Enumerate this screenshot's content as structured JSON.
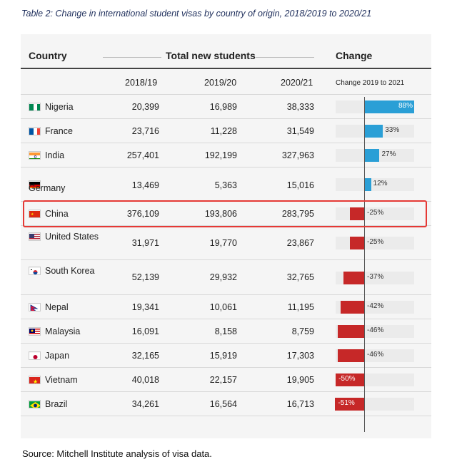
{
  "caption": "Table 2: Change in international student visas by country of origin, 2018/2019 to 2020/21",
  "source": "Source: Mitchell Institute analysis of visa data.",
  "headers": {
    "country": "Country",
    "total": "Total new students",
    "change": "Change",
    "y1": "2018/19",
    "y2": "2019/20",
    "y3": "2020/21",
    "change_sub": "Change 2019 to 2021"
  },
  "colors": {
    "positive": "#2a9fd6",
    "negative": "#c62828",
    "highlight": "#e53935"
  },
  "highlighted_country": "China",
  "rows": [
    {
      "country": "Nigeria",
      "flag": "nigeria-flag-icon",
      "v1": "20,399",
      "v2": "16,989",
      "v3": "38,333",
      "change": 88,
      "change_label": "88%"
    },
    {
      "country": "France",
      "flag": "france-flag-icon",
      "v1": "23,716",
      "v2": "11,228",
      "v3": "31,549",
      "change": 33,
      "change_label": "33%"
    },
    {
      "country": "India",
      "flag": "india-flag-icon",
      "v1": "257,401",
      "v2": "192,199",
      "v3": "327,963",
      "change": 27,
      "change_label": "27%"
    },
    {
      "country": "Germany",
      "flag": "germany-flag-icon",
      "v1": "13,469",
      "v2": "5,363",
      "v3": "15,016",
      "change": 12,
      "change_label": "12%"
    },
    {
      "country": "China",
      "flag": "china-flag-icon",
      "v1": "376,109",
      "v2": "193,806",
      "v3": "283,795",
      "change": -25,
      "change_label": "-25%"
    },
    {
      "country": "United States",
      "flag": "usa-flag-icon",
      "v1": "31,971",
      "v2": "19,770",
      "v3": "23,867",
      "change": -25,
      "change_label": "-25%"
    },
    {
      "country": "South Korea",
      "flag": "south-korea-flag-icon",
      "v1": "52,139",
      "v2": "29,932",
      "v3": "32,765",
      "change": -37,
      "change_label": "-37%"
    },
    {
      "country": "Nepal",
      "flag": "nepal-flag-icon",
      "v1": "19,341",
      "v2": "10,061",
      "v3": "11,195",
      "change": -42,
      "change_label": "-42%"
    },
    {
      "country": "Malaysia",
      "flag": "malaysia-flag-icon",
      "v1": "16,091",
      "v2": "8,158",
      "v3": "8,759",
      "change": -46,
      "change_label": "-46%"
    },
    {
      "country": "Japan",
      "flag": "japan-flag-icon",
      "v1": "32,165",
      "v2": "15,919",
      "v3": "17,303",
      "change": -46,
      "change_label": "-46%"
    },
    {
      "country": "Vietnam",
      "flag": "vietnam-flag-icon",
      "v1": "40,018",
      "v2": "22,157",
      "v3": "19,905",
      "change": -50,
      "change_label": "-50%"
    },
    {
      "country": "Brazil",
      "flag": "brazil-flag-icon",
      "v1": "34,261",
      "v2": "16,564",
      "v3": "16,713",
      "change": -51,
      "change_label": "-51%"
    }
  ],
  "chart_data": {
    "type": "table",
    "title": "Table 2: Change in international student visas by country of origin, 2018/2019 to 2020/21",
    "columns": [
      "Country",
      "2018/19",
      "2019/20",
      "2020/21",
      "Change 2019 to 2021"
    ],
    "categories": [
      "Nigeria",
      "France",
      "India",
      "Germany",
      "China",
      "United States",
      "South Korea",
      "Nepal",
      "Malaysia",
      "Japan",
      "Vietnam",
      "Brazil"
    ],
    "series": [
      {
        "name": "2018/19",
        "values": [
          20399,
          23716,
          257401,
          13469,
          376109,
          31971,
          52139,
          19341,
          16091,
          32165,
          40018,
          34261
        ]
      },
      {
        "name": "2019/20",
        "values": [
          16989,
          11228,
          192199,
          5363,
          193806,
          19770,
          29932,
          10061,
          8158,
          15919,
          22157,
          16564
        ]
      },
      {
        "name": "2020/21",
        "values": [
          38333,
          31549,
          327963,
          15016,
          283795,
          23867,
          32765,
          11195,
          8759,
          17303,
          19905,
          16713
        ]
      },
      {
        "name": "Change 2019 to 2021",
        "values": [
          88,
          33,
          27,
          12,
          -25,
          -25,
          -37,
          -42,
          -46,
          -46,
          -50,
          -51
        ]
      }
    ]
  }
}
